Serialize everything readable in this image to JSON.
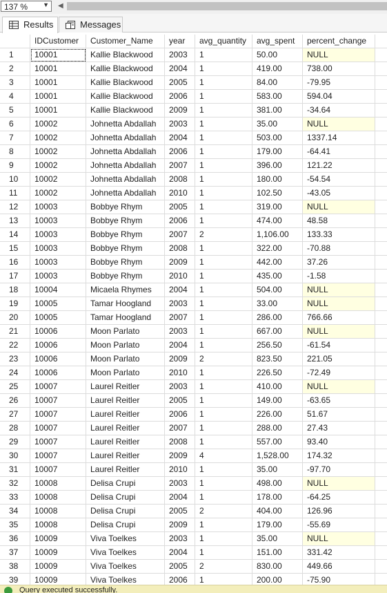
{
  "toolbar": {
    "zoom_value": "137 %"
  },
  "tabs": [
    {
      "label": "Results",
      "icon": "grid-icon"
    },
    {
      "label": "Messages",
      "icon": "messages-icon"
    }
  ],
  "grid": {
    "columns": [
      "",
      "IDCustomer",
      "Customer_Name",
      "year",
      "avg_quantity",
      "avg_spent",
      "percent_change"
    ],
    "rows": [
      [
        "1",
        "10001",
        "Kallie Blackwood",
        "2003",
        "1",
        "50.00",
        "NULL"
      ],
      [
        "2",
        "10001",
        "Kallie Blackwood",
        "2004",
        "1",
        "419.00",
        "738.00"
      ],
      [
        "3",
        "10001",
        "Kallie Blackwood",
        "2005",
        "1",
        "84.00",
        "-79.95"
      ],
      [
        "4",
        "10001",
        "Kallie Blackwood",
        "2006",
        "1",
        "583.00",
        "594.04"
      ],
      [
        "5",
        "10001",
        "Kallie Blackwood",
        "2009",
        "1",
        "381.00",
        "-34.64"
      ],
      [
        "6",
        "10002",
        "Johnetta Abdallah",
        "2003",
        "1",
        "35.00",
        "NULL"
      ],
      [
        "7",
        "10002",
        "Johnetta Abdallah",
        "2004",
        "1",
        "503.00",
        "1337.14"
      ],
      [
        "8",
        "10002",
        "Johnetta Abdallah",
        "2006",
        "1",
        "179.00",
        "-64.41"
      ],
      [
        "9",
        "10002",
        "Johnetta Abdallah",
        "2007",
        "1",
        "396.00",
        "121.22"
      ],
      [
        "10",
        "10002",
        "Johnetta Abdallah",
        "2008",
        "1",
        "180.00",
        "-54.54"
      ],
      [
        "11",
        "10002",
        "Johnetta Abdallah",
        "2010",
        "1",
        "102.50",
        "-43.05"
      ],
      [
        "12",
        "10003",
        "Bobbye Rhym",
        "2005",
        "1",
        "319.00",
        "NULL"
      ],
      [
        "13",
        "10003",
        "Bobbye Rhym",
        "2006",
        "1",
        "474.00",
        "48.58"
      ],
      [
        "14",
        "10003",
        "Bobbye Rhym",
        "2007",
        "2",
        "1,106.00",
        "133.33"
      ],
      [
        "15",
        "10003",
        "Bobbye Rhym",
        "2008",
        "1",
        "322.00",
        "-70.88"
      ],
      [
        "16",
        "10003",
        "Bobbye Rhym",
        "2009",
        "1",
        "442.00",
        "37.26"
      ],
      [
        "17",
        "10003",
        "Bobbye Rhym",
        "2010",
        "1",
        "435.00",
        "-1.58"
      ],
      [
        "18",
        "10004",
        "Micaela Rhymes",
        "2004",
        "1",
        "504.00",
        "NULL"
      ],
      [
        "19",
        "10005",
        "Tamar Hoogland",
        "2003",
        "1",
        "33.00",
        "NULL"
      ],
      [
        "20",
        "10005",
        "Tamar Hoogland",
        "2007",
        "1",
        "286.00",
        "766.66"
      ],
      [
        "21",
        "10006",
        "Moon Parlato",
        "2003",
        "1",
        "667.00",
        "NULL"
      ],
      [
        "22",
        "10006",
        "Moon Parlato",
        "2004",
        "1",
        "256.50",
        "-61.54"
      ],
      [
        "23",
        "10006",
        "Moon Parlato",
        "2009",
        "2",
        "823.50",
        "221.05"
      ],
      [
        "24",
        "10006",
        "Moon Parlato",
        "2010",
        "1",
        "226.50",
        "-72.49"
      ],
      [
        "25",
        "10007",
        "Laurel Reitler",
        "2003",
        "1",
        "410.00",
        "NULL"
      ],
      [
        "26",
        "10007",
        "Laurel Reitler",
        "2005",
        "1",
        "149.00",
        "-63.65"
      ],
      [
        "27",
        "10007",
        "Laurel Reitler",
        "2006",
        "1",
        "226.00",
        "51.67"
      ],
      [
        "28",
        "10007",
        "Laurel Reitler",
        "2007",
        "1",
        "288.00",
        "27.43"
      ],
      [
        "29",
        "10007",
        "Laurel Reitler",
        "2008",
        "1",
        "557.00",
        "93.40"
      ],
      [
        "30",
        "10007",
        "Laurel Reitler",
        "2009",
        "4",
        "1,528.00",
        "174.32"
      ],
      [
        "31",
        "10007",
        "Laurel Reitler",
        "2010",
        "1",
        "35.00",
        "-97.70"
      ],
      [
        "32",
        "10008",
        "Delisa Crupi",
        "2003",
        "1",
        "498.00",
        "NULL"
      ],
      [
        "33",
        "10008",
        "Delisa Crupi",
        "2004",
        "1",
        "178.00",
        "-64.25"
      ],
      [
        "34",
        "10008",
        "Delisa Crupi",
        "2005",
        "2",
        "404.00",
        "126.96"
      ],
      [
        "35",
        "10008",
        "Delisa Crupi",
        "2009",
        "1",
        "179.00",
        "-55.69"
      ],
      [
        "36",
        "10009",
        "Viva Toelkes",
        "2003",
        "1",
        "35.00",
        "NULL"
      ],
      [
        "37",
        "10009",
        "Viva Toelkes",
        "2004",
        "1",
        "151.00",
        "331.42"
      ],
      [
        "38",
        "10009",
        "Viva Toelkes",
        "2005",
        "2",
        "830.00",
        "449.66"
      ],
      [
        "39",
        "10009",
        "Viva Toelkes",
        "2006",
        "1",
        "200.00",
        "-75.90"
      ]
    ]
  },
  "status": {
    "text": "Query executed successfully."
  },
  "colors": {
    "null_cell": "#ffffe1",
    "grid_line": "#dcdcdc",
    "status_bar": "#f3eebb"
  }
}
